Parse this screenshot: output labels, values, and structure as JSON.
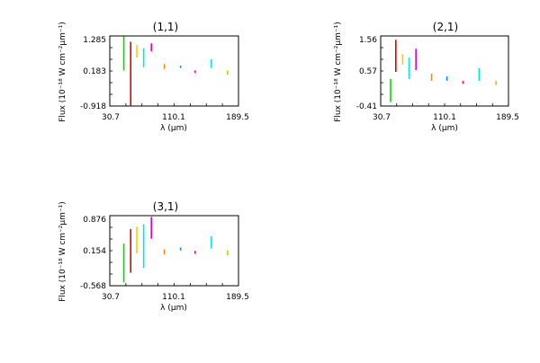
{
  "chart_data": [
    {
      "type": "scatter",
      "title": "(1,1)",
      "xlabel": "λ (μm)",
      "ylabel": "Flux (10⁻¹⁸ W cm⁻²μm⁻¹)",
      "xlim": [
        30.7,
        189.5
      ],
      "ylim": [
        -0.918,
        1.285
      ],
      "xticks": [
        "30.7",
        "110.1",
        "189.5"
      ],
      "yticks": [
        "-0.918",
        "0.183",
        "1.285"
      ],
      "series": [
        {
          "color": "#00dd00",
          "x": [
            48.0,
            48.0
          ],
          "y": [
            0.2,
            1.27
          ]
        },
        {
          "color": "#dd0000",
          "x": [
            56.5,
            56.5
          ],
          "y": [
            -0.9,
            1.1
          ]
        },
        {
          "color": "#ffcc00",
          "x": [
            64.0,
            64.0
          ],
          "y": [
            0.6,
            1.0
          ]
        },
        {
          "color": "#00e5e5",
          "x": [
            72.5,
            72.5
          ],
          "y": [
            0.3,
            0.9
          ]
        },
        {
          "color": "#dd00dd",
          "x": [
            82.0,
            82.0
          ],
          "y": [
            0.8,
            1.05
          ]
        },
        {
          "color": "#ff8800",
          "x": [
            98.0,
            98.0
          ],
          "y": [
            0.25,
            0.4
          ]
        },
        {
          "color": "#0088ff",
          "x": [
            118.0,
            118.0
          ],
          "y": [
            0.28,
            0.35
          ]
        },
        {
          "color": "#ff0088",
          "x": [
            136.0,
            136.0
          ],
          "y": [
            0.12,
            0.2
          ]
        },
        {
          "color": "#00e5e5",
          "x": [
            156.0,
            156.0
          ],
          "y": [
            0.28,
            0.55
          ]
        },
        {
          "color": "#cccc00",
          "x": [
            176.0,
            176.0
          ],
          "y": [
            0.06,
            0.2
          ]
        }
      ]
    },
    {
      "type": "scatter",
      "title": "(2,1)",
      "xlabel": "λ (μm)",
      "ylabel": "Flux (10⁻¹⁸ W cm⁻²μm⁻¹)",
      "xlim": [
        30.7,
        189.5
      ],
      "ylim": [
        -0.41,
        1.56
      ],
      "xticks": [
        "30.7",
        "110.1",
        "189.5"
      ],
      "yticks": [
        "-0.41",
        "0.57",
        "1.56"
      ],
      "series": [
        {
          "color": "#00dd00",
          "x": [
            43.0,
            43.0
          ],
          "y": [
            -0.3,
            0.35
          ]
        },
        {
          "color": "#dd0000",
          "x": [
            49.5,
            49.5
          ],
          "y": [
            0.55,
            1.45
          ]
        },
        {
          "color": "#ffcc00",
          "x": [
            58.0,
            58.0
          ],
          "y": [
            0.75,
            1.05
          ]
        },
        {
          "color": "#00e5e5",
          "x": [
            66.0,
            66.0
          ],
          "y": [
            0.35,
            0.95
          ]
        },
        {
          "color": "#dd00dd",
          "x": [
            74.5,
            74.5
          ],
          "y": [
            0.6,
            1.2
          ]
        },
        {
          "color": "#ff8800",
          "x": [
            94.0,
            94.0
          ],
          "y": [
            0.3,
            0.5
          ]
        },
        {
          "color": "#0088ff",
          "x": [
            113.0,
            113.0
          ],
          "y": [
            0.3,
            0.42
          ]
        },
        {
          "color": "#ff0088",
          "x": [
            133.0,
            133.0
          ],
          "y": [
            0.22,
            0.3
          ]
        },
        {
          "color": "#00e5e5",
          "x": [
            153.0,
            153.0
          ],
          "y": [
            0.3,
            0.65
          ]
        },
        {
          "color": "#cccc00",
          "x": [
            174.0,
            174.0
          ],
          "y": [
            0.18,
            0.3
          ]
        }
      ]
    },
    {
      "type": "scatter",
      "title": "(3,1)",
      "xlabel": "λ (μm)",
      "ylabel": "Flux (10⁻¹⁸ W cm⁻²μm⁻¹)",
      "xlim": [
        30.7,
        189.5
      ],
      "ylim": [
        -0.568,
        0.876
      ],
      "xticks": [
        "30.7",
        "110.1",
        "189.5"
      ],
      "yticks": [
        "-0.568",
        "0.154",
        "0.876"
      ],
      "series": [
        {
          "color": "#00dd00",
          "x": [
            48.0,
            48.0
          ],
          "y": [
            -0.5,
            0.3
          ]
        },
        {
          "color": "#dd0000",
          "x": [
            56.5,
            56.5
          ],
          "y": [
            -0.3,
            0.6
          ]
        },
        {
          "color": "#ffcc00",
          "x": [
            64.0,
            64.0
          ],
          "y": [
            0.1,
            0.65
          ]
        },
        {
          "color": "#00e5e5",
          "x": [
            72.5,
            72.5
          ],
          "y": [
            -0.2,
            0.7
          ]
        },
        {
          "color": "#dd00dd",
          "x": [
            82.0,
            82.0
          ],
          "y": [
            0.4,
            0.85
          ]
        },
        {
          "color": "#ff8800",
          "x": [
            98.0,
            98.0
          ],
          "y": [
            0.08,
            0.18
          ]
        },
        {
          "color": "#0088ff",
          "x": [
            118.0,
            118.0
          ],
          "y": [
            0.16,
            0.22
          ]
        },
        {
          "color": "#ff0088",
          "x": [
            136.0,
            136.0
          ],
          "y": [
            0.09,
            0.15
          ]
        },
        {
          "color": "#00e5e5",
          "x": [
            156.0,
            156.0
          ],
          "y": [
            0.2,
            0.45
          ]
        },
        {
          "color": "#cccc00",
          "x": [
            176.0,
            176.0
          ],
          "y": [
            0.06,
            0.16
          ]
        }
      ]
    }
  ]
}
